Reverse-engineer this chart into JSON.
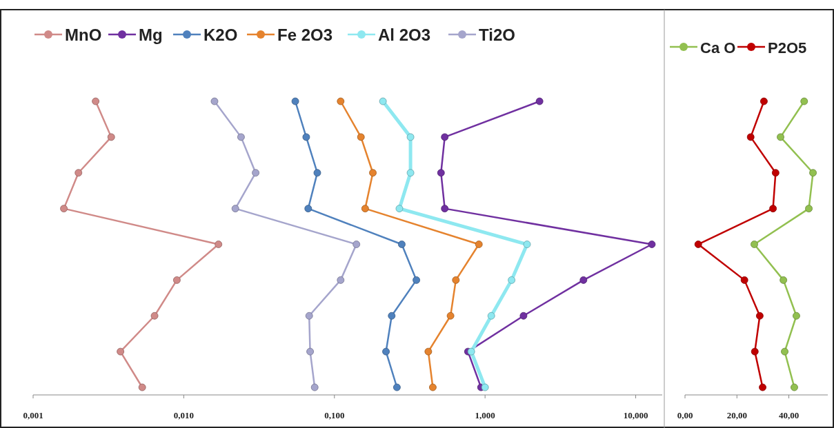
{
  "chart_data": [
    {
      "type": "line",
      "orientation": "horizontal",
      "log": "x",
      "grid": false,
      "legend": "top",
      "marker": "circle",
      "line_style": "solid",
      "categories": [
        null,
        null,
        null,
        null,
        null,
        null,
        null,
        null,
        null
      ],
      "xlim": [
        0.001,
        15
      ],
      "xticks": [
        {
          "value": 0.001,
          "label": "0,001"
        },
        {
          "value": 0.01,
          "label": "0,010"
        },
        {
          "value": 0.1,
          "label": "0,100"
        },
        {
          "value": 1,
          "label": "1,000"
        },
        {
          "value": 10,
          "label": "10,000"
        }
      ],
      "series": [
        {
          "name": "MnO",
          "color": "#d08a88",
          "values": [
            0.0026,
            0.0033,
            0.002,
            0.0016,
            0.017,
            0.009,
            0.0064,
            0.0038,
            0.0053
          ]
        },
        {
          "name": "Mg",
          "color": "#7030a0",
          "values": [
            2.3,
            0.54,
            0.51,
            0.54,
            12.8,
            4.5,
            1.8,
            0.77,
            0.94
          ]
        },
        {
          "name": "K2O",
          "color": "#4f81bd",
          "values": [
            0.055,
            0.065,
            0.077,
            0.067,
            0.28,
            0.35,
            0.24,
            0.22,
            0.26
          ]
        },
        {
          "name": "Fe 2O3",
          "color": "#e5832e",
          "values": [
            0.11,
            0.15,
            0.18,
            0.16,
            0.91,
            0.64,
            0.59,
            0.42,
            0.45
          ]
        },
        {
          "name": "Al 2O3",
          "color": "#8ee8f0",
          "values": [
            0.21,
            0.32,
            0.32,
            0.27,
            1.9,
            1.5,
            1.1,
            0.81,
            1.0
          ]
        },
        {
          "name": "Ti2O",
          "color": "#a5a5cc",
          "values": [
            0.016,
            0.024,
            0.03,
            0.022,
            0.14,
            0.11,
            0.068,
            0.069,
            0.074
          ]
        }
      ]
    },
    {
      "type": "line",
      "orientation": "horizontal",
      "grid": false,
      "legend": "top",
      "marker": "circle",
      "line_style": "solid",
      "categories": [
        null,
        null,
        null,
        null,
        null,
        null,
        null,
        null,
        null
      ],
      "xlim": [
        0,
        55
      ],
      "xticks": [
        {
          "value": 0,
          "label": "0,00"
        },
        {
          "value": 20,
          "label": "20,00"
        },
        {
          "value": 40,
          "label": "40,00"
        }
      ],
      "series": [
        {
          "name": "Ca O",
          "color": "#92c050",
          "values": [
            45.9,
            36.8,
            49.3,
            47.7,
            26.7,
            37.9,
            42.9,
            38.4,
            42.1
          ]
        },
        {
          "name": "P2O5",
          "color": "#c00000",
          "values": [
            30.4,
            25.3,
            34.9,
            33.9,
            5.1,
            22.9,
            28.8,
            26.9,
            29.9
          ]
        }
      ]
    }
  ]
}
